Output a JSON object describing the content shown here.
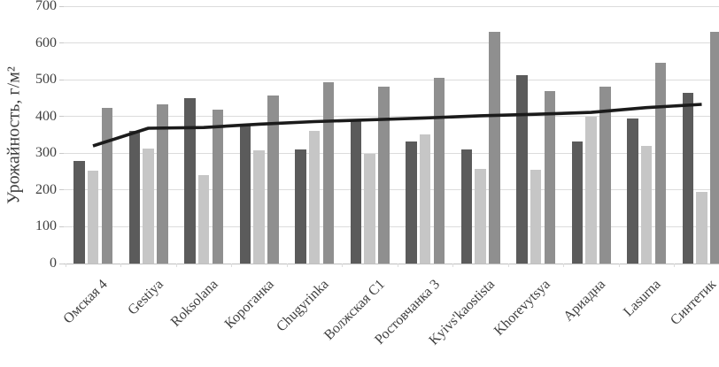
{
  "chart_data": {
    "type": "bar",
    "title": "",
    "xlabel": "",
    "ylabel": "Урожайность, г/м²",
    "ylim": [
      0,
      700
    ],
    "y_ticks": [
      "0",
      "100",
      "200",
      "300",
      "400",
      "500",
      "600",
      "700"
    ],
    "grid": true,
    "legend": "none",
    "categories": [
      "Омская 4",
      "Gestiya",
      "Roksolana",
      "Короганка",
      "Chugyrinka",
      "Волжская C1",
      "Ростовчанка 3",
      "Kyivs'kaostista",
      "Khorevytsya",
      "Ариадна",
      "Lasurna",
      "Синтетик"
    ],
    "series": [
      {
        "name": "series_1",
        "color": "#5b5b5b",
        "values": [
          280,
          360,
          450,
          375,
          311,
          391,
          332,
          311,
          512,
          333,
          395,
          465
        ]
      },
      {
        "name": "series_2",
        "color": "#c6c6c6",
        "values": [
          252,
          312,
          240,
          309,
          362,
          298,
          352,
          258,
          254,
          400,
          321,
          195
        ]
      },
      {
        "name": "series_3",
        "color": "#8f8f8f",
        "values": [
          424,
          433,
          419,
          458,
          494,
          482,
          506,
          631,
          470,
          480,
          547,
          631
        ]
      }
    ],
    "line": {
      "name": "trend_line",
      "color": "#1b1b1b",
      "values": [
        320,
        368,
        370,
        379,
        386,
        391,
        396,
        402,
        406,
        411,
        424,
        433
      ]
    }
  },
  "colors": {
    "background": "#ffffff",
    "gridline": "#dcdcdc",
    "axis_line": "#bfbfbf",
    "tick": "#c9c9c9",
    "text": "#3f3f3f"
  }
}
